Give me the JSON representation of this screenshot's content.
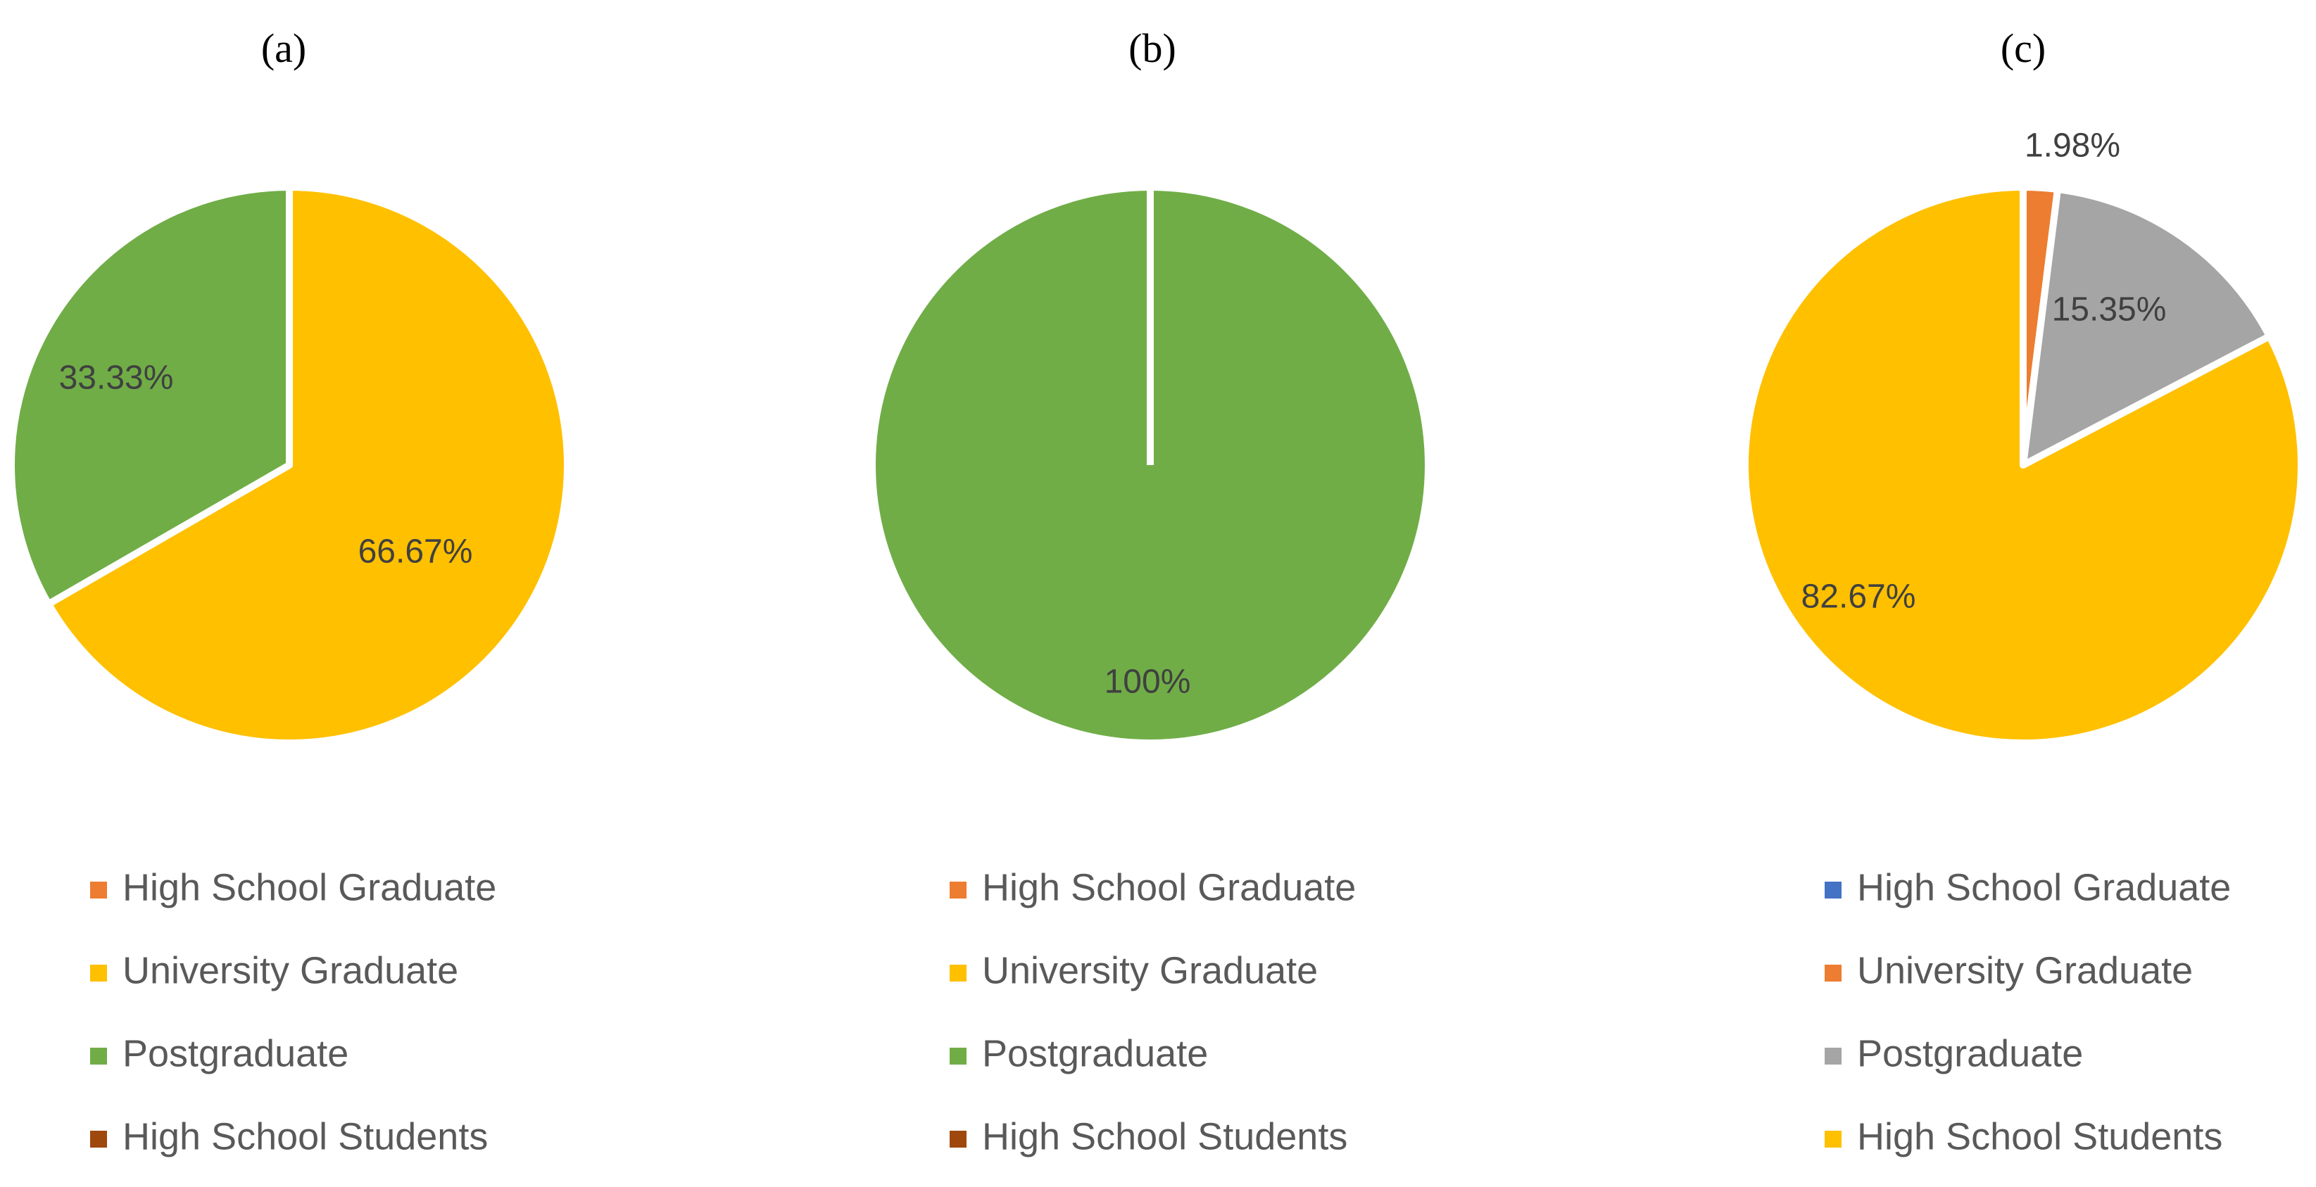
{
  "chart_data": [
    {
      "type": "pie",
      "title": "(a)",
      "slices": [
        {
          "label": "University Graduate",
          "value": 66.67,
          "display": "66.67%",
          "color": "#FFC000"
        },
        {
          "label": "Postgraduate",
          "value": 33.33,
          "display": "33.33%",
          "color": "#70AD47"
        }
      ],
      "legend": {
        "placement": "bottom",
        "entries": [
          {
            "label": "High School Graduate",
            "color": "#ED7D31"
          },
          {
            "label": "University Graduate",
            "color": "#FFC000"
          },
          {
            "label": "Postgraduate",
            "color": "#70AD47"
          },
          {
            "label": "High School Students",
            "color": "#9E480E"
          }
        ]
      }
    },
    {
      "type": "pie",
      "title": "(b)",
      "slices": [
        {
          "label": "Postgraduate",
          "value": 100,
          "display": "100%",
          "color": "#70AD47"
        }
      ],
      "legend": {
        "placement": "bottom",
        "entries": [
          {
            "label": "High School Graduate",
            "color": "#ED7D31"
          },
          {
            "label": "University Graduate",
            "color": "#FFC000"
          },
          {
            "label": "Postgraduate",
            "color": "#70AD47"
          },
          {
            "label": "High School Students",
            "color": "#9E480E"
          }
        ]
      }
    },
    {
      "type": "pie",
      "title": "(c)",
      "slices": [
        {
          "label": "University Graduate",
          "value": 1.98,
          "display": "1.98%",
          "color": "#ED7D31"
        },
        {
          "label": "Postgraduate",
          "value": 15.35,
          "display": "15.35%",
          "color": "#A5A5A5"
        },
        {
          "label": "High School Students",
          "value": 82.67,
          "display": "82.67%",
          "color": "#FFC000"
        }
      ],
      "legend": {
        "placement": "bottom",
        "entries": [
          {
            "label": "High School Graduate",
            "color": "#4472C4"
          },
          {
            "label": "University Graduate",
            "color": "#ED7D31"
          },
          {
            "label": "Postgraduate",
            "color": "#A5A5A5"
          },
          {
            "label": "High School Students",
            "color": "#FFC000"
          }
        ]
      }
    }
  ]
}
